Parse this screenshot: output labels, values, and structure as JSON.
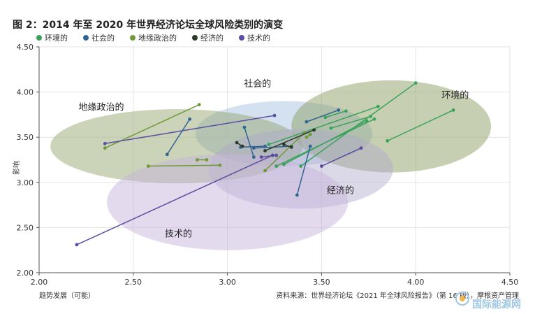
{
  "title": "图 2：2014 年至 2020 年世界经济论坛全球风险类别的演变",
  "source": "资料来源：世界经济论坛《2021 年全球风险报告》（第 16 版），摩根资产管理",
  "watermark": "国际能源网",
  "chart_data": {
    "type": "scatter",
    "xlabel": "趋势发展（可能）",
    "ylabel": "影响",
    "xlim": [
      2.0,
      4.5
    ],
    "ylim": [
      2.0,
      4.5
    ],
    "xticks": [
      "2.00",
      "2.50",
      "3.00",
      "3.50",
      "4.00",
      "4.50"
    ],
    "yticks": [
      "2.00",
      "2.50",
      "3.00",
      "3.50",
      "4.00",
      "4.50"
    ],
    "grid": true,
    "legend_position": "top",
    "colors": {
      "环境的": "#3aa35a",
      "社会的": "#2f6591",
      "地缘政治的": "#6f9a3a",
      "经济的": "#2b3a23",
      "技术的": "#5b4ca0"
    },
    "ellipse_labels": [
      {
        "text": "社会的",
        "x": 3.16,
        "y": 4.06
      },
      {
        "text": "地缘政治的",
        "x": 2.33,
        "y": 3.8
      },
      {
        "text": "环境的",
        "x": 4.21,
        "y": 3.93
      },
      {
        "text": "经济的",
        "x": 3.6,
        "y": 2.88
      },
      {
        "text": "技术的",
        "x": 2.74,
        "y": 2.4
      }
    ],
    "regions": [
      {
        "series": "社会的",
        "cx": 3.3,
        "cy": 3.54,
        "rx": 0.47,
        "ry": 0.36,
        "fill": "#a8c3e3",
        "opacity": 0.5
      },
      {
        "series": "地缘政治的",
        "cx": 2.73,
        "cy": 3.4,
        "rx": 0.67,
        "ry": 0.41,
        "fill": "#98a874",
        "opacity": 0.5
      },
      {
        "series": "环境的",
        "cx": 3.87,
        "cy": 3.62,
        "rx": 0.53,
        "ry": 0.51,
        "fill": "#8f9f66",
        "opacity": 0.5
      },
      {
        "series": "经济的",
        "cx": 3.39,
        "cy": 3.15,
        "rx": 0.49,
        "ry": 0.44,
        "fill": "#b0a9cc",
        "opacity": 0.45
      },
      {
        "series": "技术的",
        "cx": 3.0,
        "cy": 2.78,
        "rx": 0.64,
        "ry": 0.53,
        "fill": "#c7b6dc",
        "opacity": 0.5
      }
    ],
    "series": [
      {
        "name": "环境的",
        "segments": [
          [
            [
              3.39,
              3.18
            ],
            [
              4.0,
              4.1
            ]
          ],
          [
            [
              3.22,
              3.42
            ],
            [
              3.8,
              3.84
            ]
          ],
          [
            [
              3.55,
              3.6
            ],
            [
              3.76,
              3.73
            ]
          ],
          [
            [
              3.85,
              3.46
            ],
            [
              4.2,
              3.8
            ]
          ],
          [
            [
              3.26,
              3.18
            ],
            [
              3.78,
              3.7
            ]
          ],
          [
            [
              3.3,
              3.2
            ],
            [
              3.74,
              3.68
            ]
          ],
          [
            [
              3.52,
              3.72
            ],
            [
              3.63,
              3.79
            ]
          ]
        ]
      },
      {
        "name": "社会的",
        "segments": [
          [
            [
              2.68,
              3.31
            ],
            [
              2.8,
              3.7
            ]
          ],
          [
            [
              3.42,
              3.67
            ],
            [
              3.59,
              3.8
            ]
          ],
          [
            [
              3.37,
              2.86
            ],
            [
              3.44,
              3.4
            ]
          ],
          [
            [
              3.09,
              3.61
            ],
            [
              3.14,
              3.28
            ]
          ],
          [
            [
              3.07,
              3.39
            ],
            [
              3.2,
              3.4
            ]
          ],
          [
            [
              3.14,
              3.38
            ],
            [
              3.34,
              3.4
            ]
          ]
        ]
      },
      {
        "name": "地缘政治的",
        "segments": [
          [
            [
              2.35,
              3.38
            ],
            [
              2.85,
              3.86
            ]
          ],
          [
            [
              2.58,
              3.18
            ],
            [
              2.96,
              3.19
            ]
          ],
          [
            [
              2.84,
              3.25
            ],
            [
              2.89,
              3.25
            ]
          ],
          [
            [
              3.2,
              3.13
            ],
            [
              3.41,
              3.55
            ]
          ],
          [
            [
              3.42,
              3.5
            ],
            [
              3.44,
              3.53
            ]
          ]
        ]
      },
      {
        "name": "经济的",
        "segments": [
          [
            [
              3.05,
              3.44
            ],
            [
              3.08,
              3.4
            ]
          ],
          [
            [
              3.2,
              3.35
            ],
            [
              3.46,
              3.58
            ]
          ],
          [
            [
              3.34,
              3.39
            ],
            [
              3.3,
              3.42
            ]
          ]
        ]
      },
      {
        "name": "技术的",
        "segments": [
          [
            [
              2.2,
              2.31
            ],
            [
              3.24,
              3.3
            ]
          ],
          [
            [
              2.35,
              3.43
            ],
            [
              3.25,
              3.74
            ]
          ],
          [
            [
              3.5,
              3.18
            ],
            [
              3.71,
              3.38
            ]
          ],
          [
            [
              3.18,
              3.28
            ],
            [
              3.26,
              3.3
            ]
          ]
        ]
      }
    ]
  }
}
